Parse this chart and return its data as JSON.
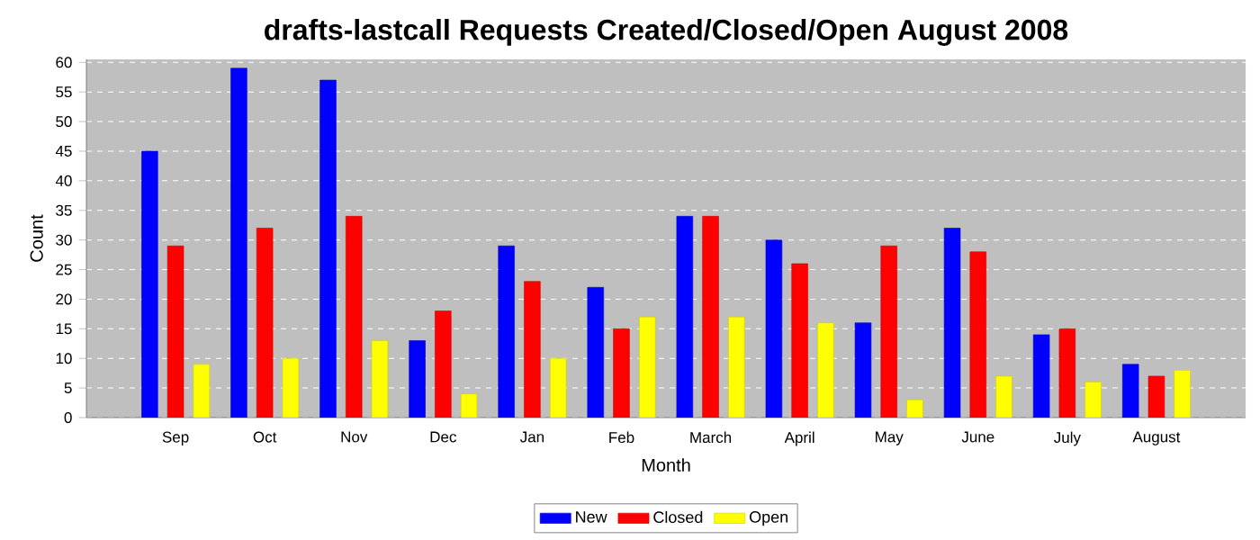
{
  "chart_data": {
    "type": "bar",
    "title": "drafts-lastcall Requests Created/Closed/Open August 2008",
    "xlabel": "Month",
    "ylabel": "Count",
    "categories": [
      "Sep",
      "Oct",
      "Nov",
      "Dec",
      "Jan",
      "Feb",
      "March",
      "April",
      "May",
      "June",
      "July",
      "August"
    ],
    "series": [
      {
        "name": "New",
        "color": "#0000ff",
        "values": [
          45,
          59,
          57,
          13,
          29,
          22,
          34,
          30,
          16,
          32,
          14,
          9
        ]
      },
      {
        "name": "Closed",
        "color": "#ff0000",
        "values": [
          29,
          32,
          34,
          18,
          23,
          15,
          34,
          26,
          29,
          28,
          15,
          7
        ]
      },
      {
        "name": "Open",
        "color": "#ffff00",
        "values": [
          9,
          10,
          13,
          4,
          10,
          17,
          17,
          16,
          3,
          7,
          6,
          8
        ]
      }
    ],
    "ylim": [
      0,
      60.5
    ],
    "yticks": [
      0,
      5,
      10,
      15,
      20,
      25,
      30,
      35,
      40,
      45,
      50,
      55,
      60
    ],
    "grid": "y",
    "legend": "bottom"
  }
}
